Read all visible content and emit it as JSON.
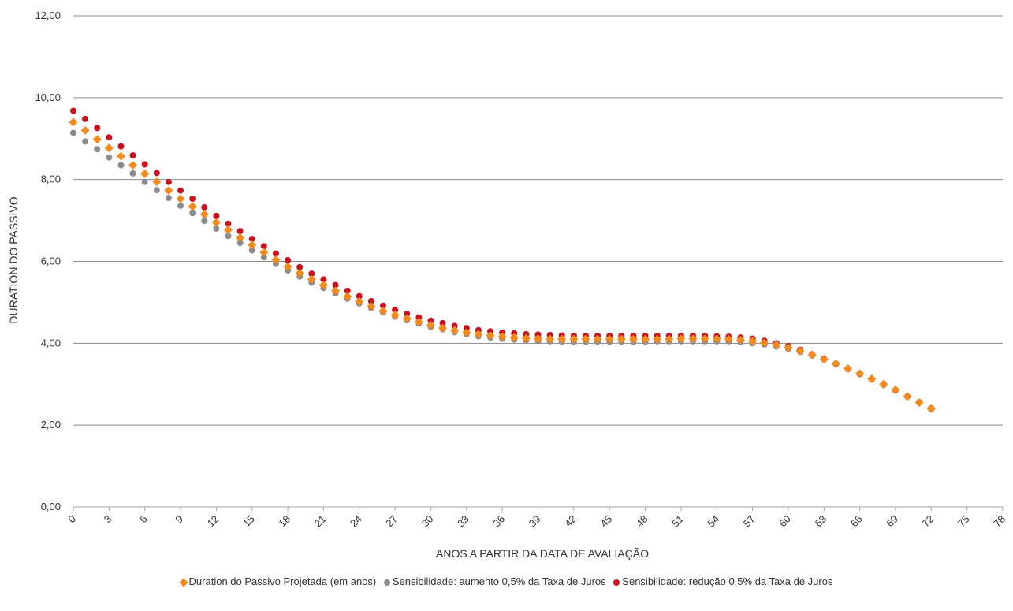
{
  "chart_data": {
    "type": "scatter",
    "title": "",
    "xlabel": "ANOS A PARTIR DA DATA DE AVALIAÇÃO",
    "ylabel": "DURATION DO PASSIVO",
    "xlim": [
      0,
      78
    ],
    "ylim": [
      0,
      12
    ],
    "x_ticks": [
      "0",
      "3",
      "6",
      "9",
      "12",
      "15",
      "18",
      "21",
      "24",
      "27",
      "30",
      "33",
      "36",
      "39",
      "42",
      "45",
      "48",
      "51",
      "54",
      "57",
      "60",
      "63",
      "66",
      "69",
      "72",
      "75",
      "78"
    ],
    "y_ticks": [
      "0,00",
      "2,00",
      "4,00",
      "6,00",
      "8,00",
      "10,00",
      "12,00"
    ],
    "grid": "horizontal",
    "legend_position": "bottom",
    "series": [
      {
        "name": "Duration do Passivo Projetada (em anos)",
        "marker": "diamond",
        "color": "#f28a1c",
        "values": [
          9.4,
          9.2,
          8.98,
          8.77,
          8.57,
          8.35,
          8.14,
          7.94,
          7.73,
          7.53,
          7.34,
          7.15,
          6.95,
          6.77,
          6.58,
          6.4,
          6.22,
          6.04,
          5.87,
          5.71,
          5.56,
          5.42,
          5.28,
          5.14,
          5.02,
          4.9,
          4.79,
          4.69,
          4.6,
          4.52,
          4.44,
          4.37,
          4.31,
          4.26,
          4.22,
          4.19,
          4.16,
          4.14,
          4.12,
          4.11,
          4.1,
          4.1,
          4.1,
          4.1,
          4.1,
          4.1,
          4.1,
          4.1,
          4.1,
          4.1,
          4.1,
          4.11,
          4.11,
          4.11,
          4.11,
          4.1,
          4.08,
          4.05,
          4.01,
          3.96,
          3.89,
          3.81,
          3.72,
          3.61,
          3.5,
          3.38,
          3.26,
          3.13,
          3.0,
          2.86,
          2.7,
          2.55,
          2.4
        ]
      },
      {
        "name": "Sensibilidade: aumento 0,5% da Taxa de Juros",
        "marker": "circle",
        "color": "#8c8c8c",
        "values": [
          9.14,
          8.93,
          8.74,
          8.54,
          8.35,
          8.15,
          7.94,
          7.74,
          7.55,
          7.36,
          7.18,
          6.99,
          6.8,
          6.62,
          6.45,
          6.27,
          6.1,
          5.94,
          5.78,
          5.63,
          5.48,
          5.35,
          5.22,
          5.09,
          4.97,
          4.86,
          4.75,
          4.65,
          4.56,
          4.48,
          4.4,
          4.34,
          4.27,
          4.22,
          4.17,
          4.14,
          4.11,
          4.09,
          4.07,
          4.06,
          4.05,
          4.04,
          4.04,
          4.04,
          4.04,
          4.04,
          4.04,
          4.04,
          4.04,
          4.05,
          4.05,
          4.05,
          4.05,
          4.05,
          4.05,
          4.05,
          4.03,
          4.0,
          3.97,
          3.92,
          3.86,
          3.79,
          3.7,
          3.6,
          3.49,
          3.37,
          3.25,
          3.12,
          2.99,
          2.85,
          2.7,
          2.55,
          2.39
        ]
      },
      {
        "name": "Sensibilidade: redução 0,5% da Taxa de Juros",
        "marker": "circle",
        "color": "#c8101e",
        "values": [
          9.68,
          9.48,
          9.26,
          9.03,
          8.81,
          8.59,
          8.37,
          8.16,
          7.94,
          7.73,
          7.53,
          7.32,
          7.11,
          6.92,
          6.74,
          6.55,
          6.37,
          6.19,
          6.03,
          5.86,
          5.7,
          5.56,
          5.42,
          5.28,
          5.15,
          5.03,
          4.92,
          4.81,
          4.72,
          4.63,
          4.55,
          4.49,
          4.42,
          4.37,
          4.32,
          4.29,
          4.26,
          4.24,
          4.22,
          4.21,
          4.2,
          4.19,
          4.18,
          4.18,
          4.18,
          4.18,
          4.18,
          4.18,
          4.18,
          4.18,
          4.18,
          4.18,
          4.18,
          4.18,
          4.17,
          4.16,
          4.14,
          4.11,
          4.06,
          4.0,
          3.93,
          3.84,
          3.73,
          3.62,
          3.5,
          3.37,
          3.25,
          3.12,
          2.99,
          2.85,
          2.7,
          2.56,
          2.41
        ]
      }
    ]
  }
}
